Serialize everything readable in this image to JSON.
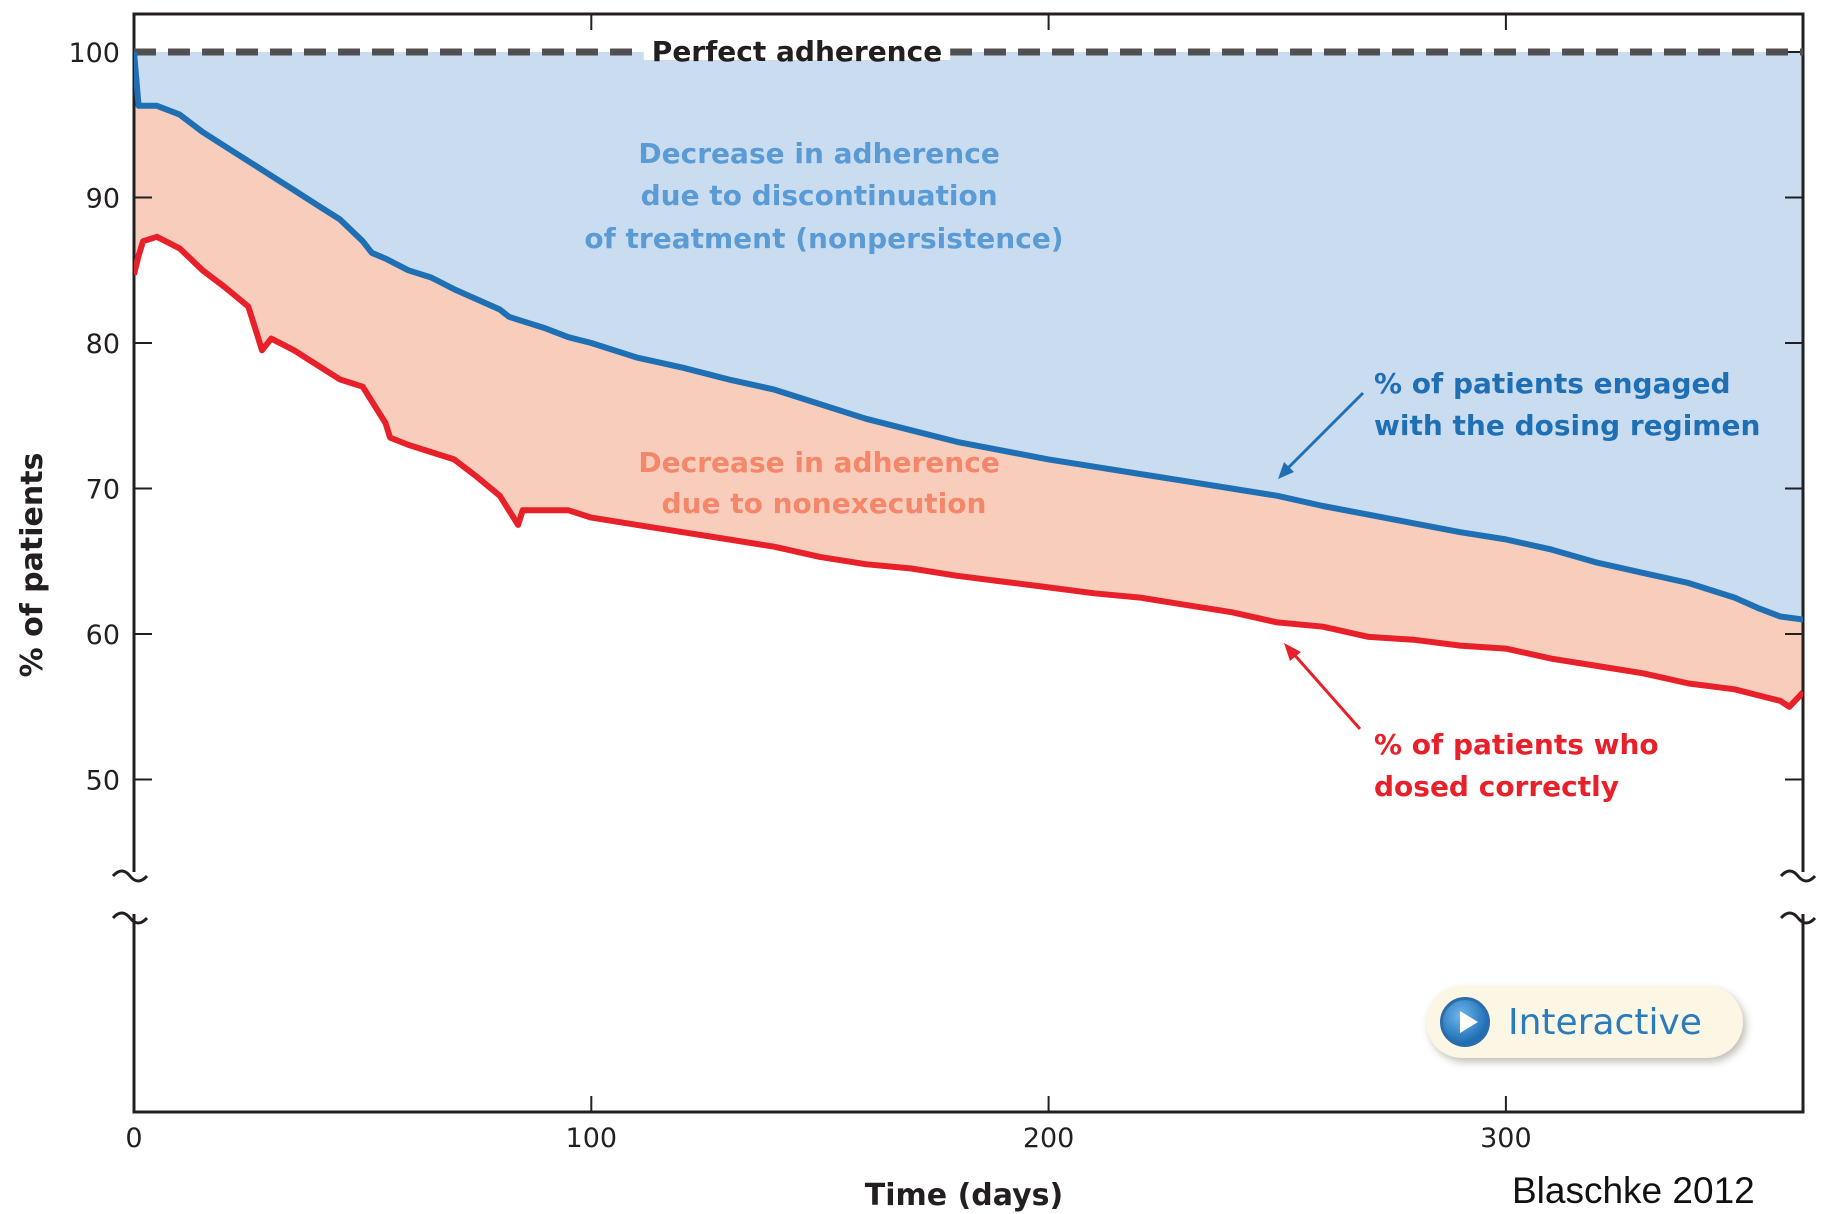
{
  "chart_data": {
    "type": "area",
    "xlabel": "Time (days)",
    "ylabel": "% of patients",
    "xlim": [
      0,
      365
    ],
    "ylim": [
      50,
      100
    ],
    "axis_break": "y",
    "x_ticks": [
      0,
      100,
      200,
      300
    ],
    "y_ticks": [
      50,
      60,
      70,
      80,
      90,
      100
    ],
    "grid": false,
    "reference_line": {
      "value": 100,
      "label": "Perfect adherence",
      "style": "dashed"
    },
    "series": [
      {
        "name": "% of patients engaged with the dosing regimen",
        "color": "#1f6fb4",
        "x": [
          0,
          1,
          5,
          10,
          15,
          20,
          25,
          30,
          35,
          40,
          45,
          50,
          52,
          55,
          60,
          65,
          70,
          75,
          80,
          82,
          85,
          90,
          95,
          100,
          110,
          120,
          130,
          140,
          150,
          160,
          170,
          180,
          190,
          200,
          210,
          220,
          230,
          240,
          250,
          260,
          270,
          280,
          290,
          300,
          310,
          320,
          330,
          340,
          350,
          355,
          360,
          365
        ],
        "y": [
          100,
          96.3,
          96.3,
          95.7,
          94.5,
          93.5,
          92.5,
          91.5,
          90.5,
          89.5,
          88.5,
          87,
          86.2,
          85.8,
          85,
          84.5,
          83.7,
          83,
          82.3,
          81.8,
          81.5,
          81,
          80.4,
          80,
          79,
          78.3,
          77.5,
          76.8,
          75.8,
          74.8,
          74,
          73.2,
          72.6,
          72,
          71.5,
          71,
          70.5,
          70,
          69.5,
          68.8,
          68.2,
          67.6,
          67,
          66.5,
          65.8,
          64.9,
          64.2,
          63.5,
          62.5,
          61.8,
          61.2,
          61
        ]
      },
      {
        "name": "% of patients who dosed correctly",
        "color": "#e8202a",
        "x": [
          0,
          1,
          2,
          5,
          10,
          15,
          20,
          25,
          27,
          28,
          30,
          35,
          40,
          45,
          50,
          55,
          56,
          60,
          65,
          70,
          75,
          80,
          83,
          84,
          85,
          90,
          95,
          100,
          110,
          120,
          130,
          140,
          150,
          160,
          170,
          180,
          190,
          200,
          210,
          220,
          230,
          240,
          250,
          260,
          270,
          280,
          290,
          300,
          310,
          320,
          330,
          340,
          350,
          355,
          360,
          362,
          365
        ],
        "y": [
          84.7,
          86,
          87,
          87.3,
          86.5,
          85,
          83.8,
          82.5,
          80.5,
          79.5,
          80.3,
          79.5,
          78.5,
          77.5,
          77,
          74.5,
          73.5,
          73,
          72.5,
          72,
          70.8,
          69.5,
          68,
          67.5,
          68.5,
          68.5,
          68.5,
          68,
          67.5,
          67,
          66.5,
          66,
          65.3,
          64.8,
          64.5,
          64,
          63.6,
          63.2,
          62.8,
          62.5,
          62,
          61.5,
          60.8,
          60.5,
          59.8,
          59.6,
          59.2,
          59,
          58.3,
          57.8,
          57.3,
          56.6,
          56.2,
          55.8,
          55.4,
          55,
          56
        ]
      }
    ],
    "regions": [
      {
        "between": [
          "Perfect adherence",
          "% of patients engaged with the dosing regimen"
        ],
        "color": "#cadcf0"
      },
      {
        "between": [
          "% of patients engaged with the dosing regimen",
          "% of patients who dosed correctly"
        ],
        "color": "#f8cdbc"
      }
    ],
    "annotations": [
      {
        "lines": [
          "Decrease in adherence",
          "due to discontinuation",
          "of treatment (nonpersistence)"
        ],
        "color": "#5b9bd5"
      },
      {
        "lines": [
          "Decrease in adherence",
          "due to nonexecution"
        ],
        "color": "#f4866a"
      },
      {
        "lines": [
          "% of patients engaged",
          "with  the dosing regimen"
        ],
        "color": "#1f6fb4"
      },
      {
        "lines": [
          "% of patients who",
          "dosed correctly"
        ],
        "color": "#e8202a"
      }
    ]
  },
  "interactive_button": {
    "label": "Interactive",
    "icon": "play-icon"
  },
  "credit": "Blaschke 2012"
}
